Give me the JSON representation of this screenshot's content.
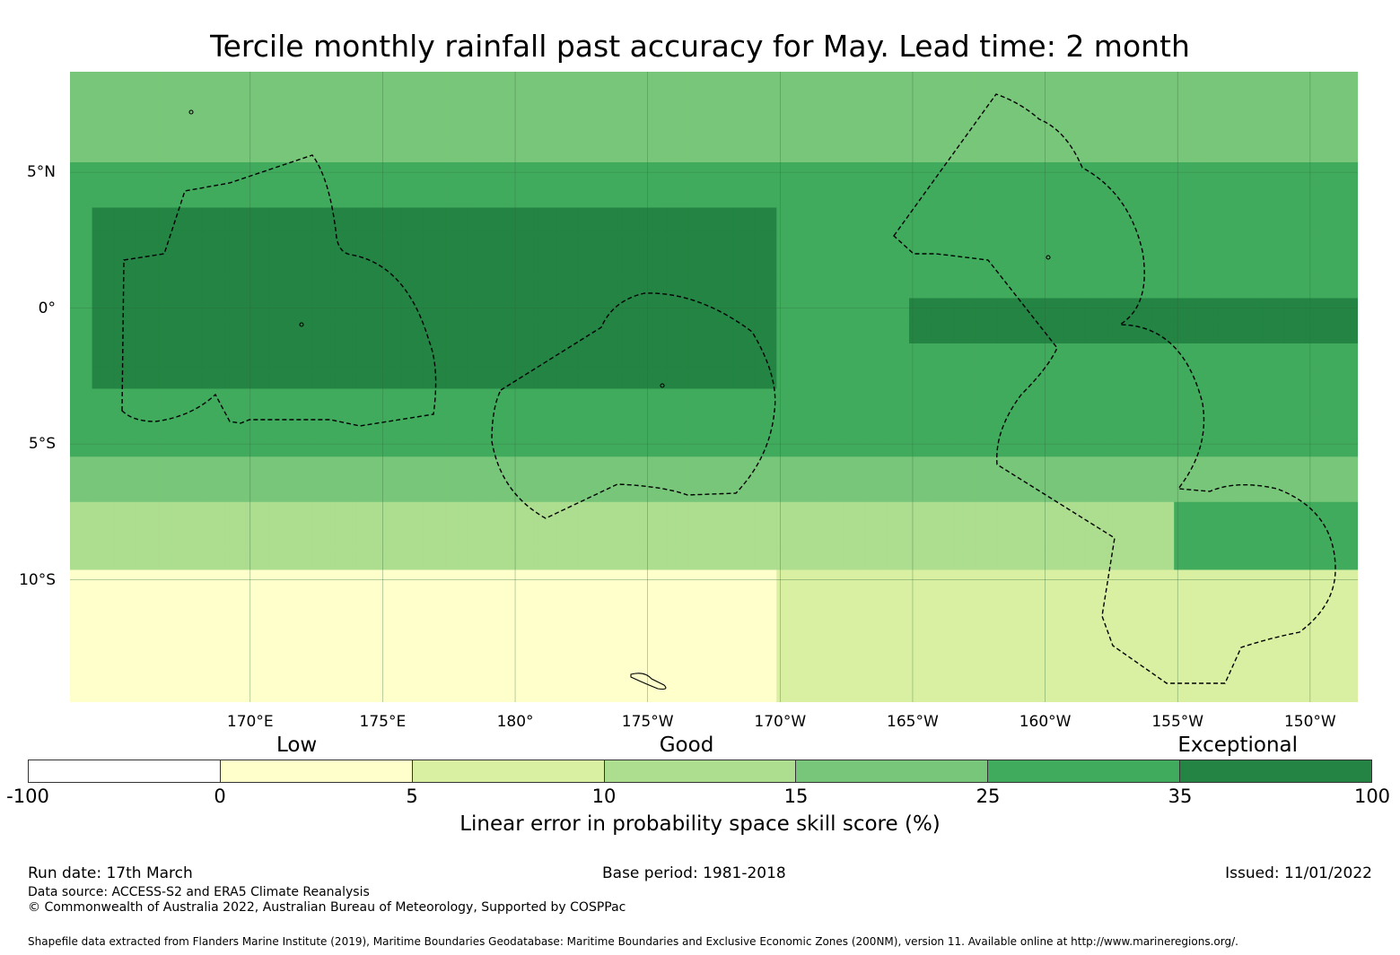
{
  "title": "Tercile monthly rainfall past accuracy for May. Lead time: 2 month",
  "map": {
    "lon_range": [
      163.2,
      211.8
    ],
    "lat_range": [
      -14.5,
      8.7
    ],
    "latitude_labels": [
      {
        "label": "5°N",
        "lat": 5
      },
      {
        "label": "0°",
        "lat": 0
      },
      {
        "label": "5°S",
        "lat": -5
      },
      {
        "label": "10°S",
        "lat": -10
      }
    ],
    "longitude_labels": [
      {
        "label": "170°E",
        "lon": 170
      },
      {
        "label": "175°E",
        "lon": 175
      },
      {
        "label": "180°",
        "lon": 180
      },
      {
        "label": "175°W",
        "lon": 185
      },
      {
        "label": "170°W",
        "lon": 190
      },
      {
        "label": "165°W",
        "lon": 195
      },
      {
        "label": "160°W",
        "lon": 200
      },
      {
        "label": "155°W",
        "lon": 205
      },
      {
        "label": "150°W",
        "lon": 210
      }
    ],
    "skill_zones": [
      {
        "lat_min": 5.0,
        "lat_max": 8.7,
        "value": 20
      },
      {
        "lat_min": -5.5,
        "lat_max": 5.0,
        "value": 30
      },
      {
        "lat_min": -3.0,
        "lat_max": 3.5,
        "value": 50,
        "lon_min": 164,
        "lon_max": 190
      },
      {
        "lat_min": -1.0,
        "lat_max": 0.0,
        "value": 50,
        "lon_min": 195,
        "lon_max": 212
      },
      {
        "lat_min": -7.5,
        "lat_max": -5.5,
        "value": 20
      },
      {
        "lat_min": -10.0,
        "lat_max": -7.5,
        "value": 12
      },
      {
        "lat_min": -14.5,
        "lat_max": -10.0,
        "value": 3,
        "lon_min": 163,
        "lon_max": 190
      },
      {
        "lat_min": -14.5,
        "lat_max": -10.0,
        "value": 8,
        "lon_min": 190,
        "lon_max": 212
      },
      {
        "lat_min": -10.0,
        "lat_max": -7.0,
        "value": 30,
        "lon_min": 205,
        "lon_max": 212
      }
    ]
  },
  "colorbar": {
    "category_labels": [
      {
        "label": "Low",
        "at": 0.2
      },
      {
        "label": "Good",
        "at": 0.49
      },
      {
        "label": "Exceptional",
        "at": 0.9
      }
    ],
    "boundaries": [
      "-100",
      "0",
      "5",
      "10",
      "15",
      "25",
      "35",
      "100"
    ],
    "colors": [
      "#ffffff",
      "#ffffcc",
      "#d9f0a3",
      "#addd8e",
      "#78c679",
      "#41ab5d",
      "#238443"
    ],
    "axis_title": "Linear error in probability space skill score (%)"
  },
  "footer": {
    "run_date": "Run date: 17th March",
    "base_period": "Base period: 1981-2018",
    "issued": "Issued: 11/01/2022",
    "data_source": "Data source: ACCESS-S2 and ERA5 Climate Reanalysis",
    "copyright": "© Commonwealth of Australia 2022, Australian Bureau of Meteorology, Supported by COSPPac",
    "shapefile_note": "Shapefile data extracted from Flanders Marine Institute (2019), Maritime Boundaries Geodatabase: Maritime Boundaries and Exclusive Economic Zones (200NM), version 11. Available online at http://www.marineregions.org/."
  }
}
